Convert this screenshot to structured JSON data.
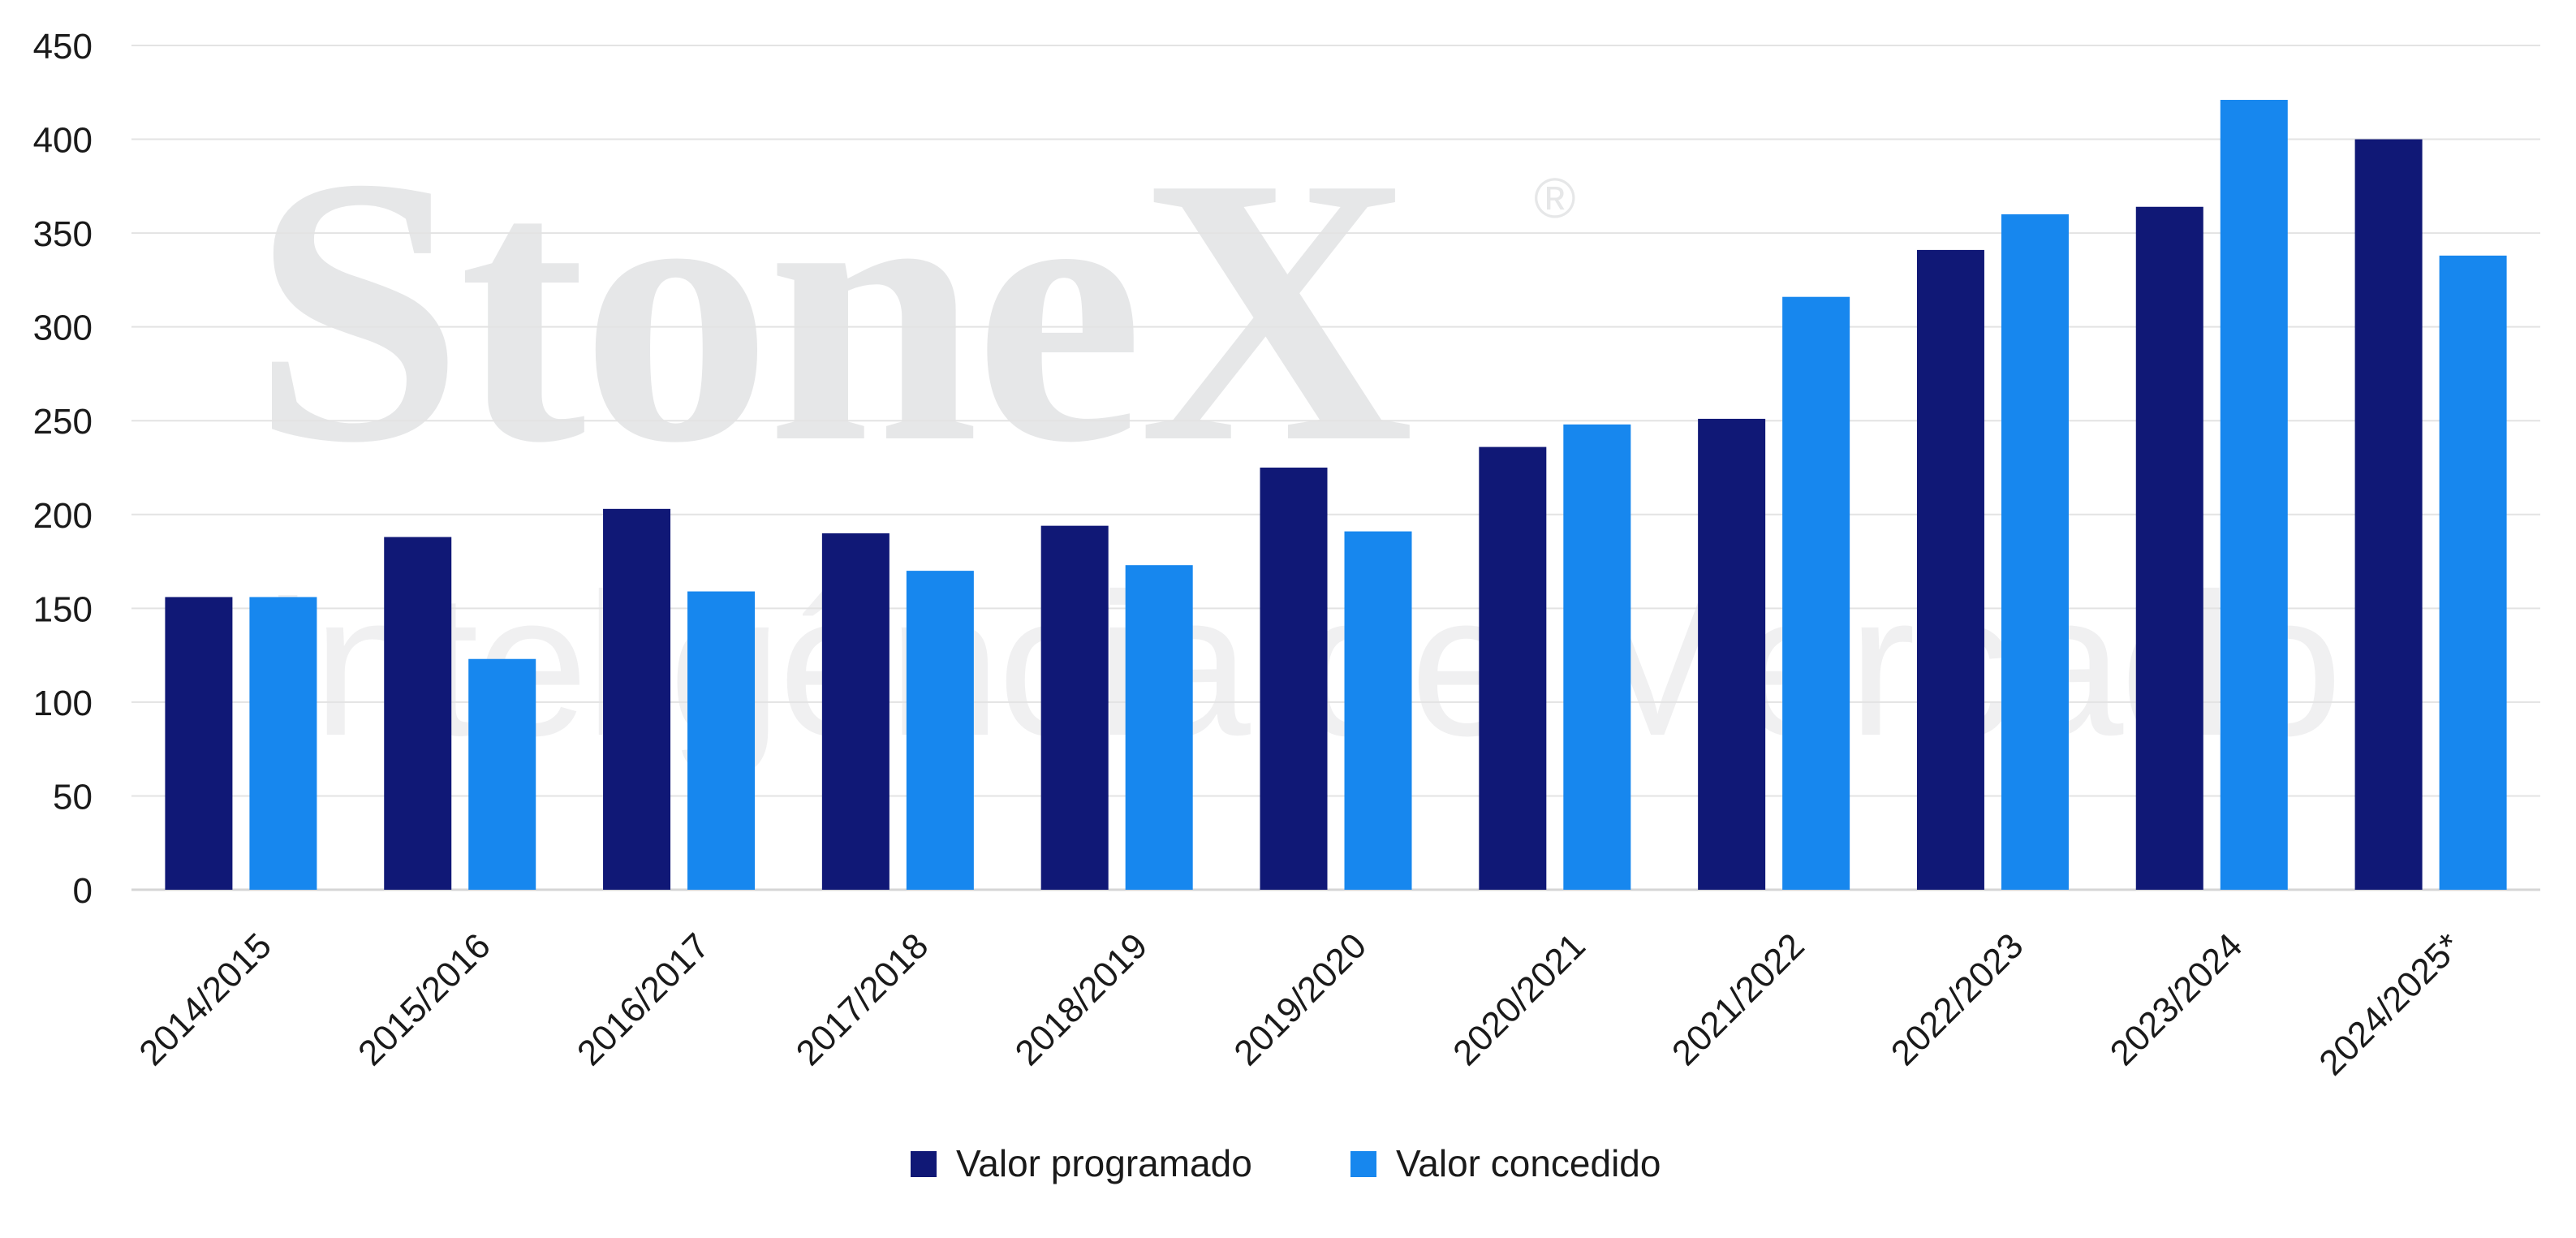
{
  "watermark": {
    "brand": "StoneX",
    "registered": "®",
    "tagline": "Inteligência de Mercado"
  },
  "chart_data": {
    "type": "bar",
    "title": "",
    "xlabel": "",
    "ylabel": "",
    "ylim": [
      0,
      450
    ],
    "yticks": [
      0,
      50,
      100,
      150,
      200,
      250,
      300,
      350,
      400,
      450
    ],
    "ytick_labels": [
      "0",
      "50",
      "100",
      "150",
      "200",
      "250",
      "300",
      "350",
      "400",
      "450"
    ],
    "grid": true,
    "legend_position": "bottom",
    "categories": [
      "2014/2015",
      "2015/2016",
      "2016/2017",
      "2017/2018",
      "2018/2019",
      "2019/2020",
      "2020/2021",
      "2021/2022",
      "2022/2023",
      "2023/2024",
      "2024/2025*"
    ],
    "series": [
      {
        "name": "Valor programado",
        "color": "#101876",
        "values": [
          156,
          188,
          203,
          190,
          194,
          225,
          236,
          251,
          341,
          364,
          400
        ]
      },
      {
        "name": "Valor concedido",
        "color": "#1787ee",
        "values": [
          156,
          123,
          159,
          170,
          173,
          191,
          248,
          316,
          360,
          421,
          338
        ]
      }
    ]
  }
}
